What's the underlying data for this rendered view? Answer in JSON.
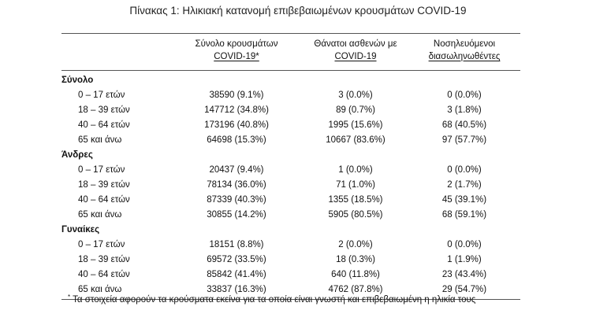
{
  "caption": "Πίνακας 1: Ηλικιακή κατανομή επιβεβαιωμένων κρουσμάτων COVID-19",
  "headers": [
    {
      "line1": "Σύνολο κρουσμάτων",
      "line2": "COVID-19*"
    },
    {
      "line1": "Θάνατοι ασθενών με",
      "line2": "COVID-19"
    },
    {
      "line1": "Νοσηλευόμενοι",
      "line2": "διασωληνωθέντες"
    }
  ],
  "groups": [
    {
      "title": "Σύνολο",
      "rows": [
        {
          "age": "0 – 17 ετών",
          "cases": "38590 (9.1%)",
          "deaths": "3 (0.0%)",
          "intubated": "0 (0.0%)"
        },
        {
          "age": "18 – 39 ετών",
          "cases": "147712 (34.8%)",
          "deaths": "89 (0.7%)",
          "intubated": "3 (1.8%)"
        },
        {
          "age": "40 – 64 ετών",
          "cases": "173196 (40.8%)",
          "deaths": "1995 (15.6%)",
          "intubated": "68 (40.5%)"
        },
        {
          "age": "65 και άνω",
          "cases": "64698 (15.3%)",
          "deaths": "10667 (83.6%)",
          "intubated": "97 (57.7%)"
        }
      ]
    },
    {
      "title": "Άνδρες",
      "rows": [
        {
          "age": "0 – 17 ετών",
          "cases": "20437 (9.4%)",
          "deaths": "1 (0.0%)",
          "intubated": "0 (0.0%)"
        },
        {
          "age": "18 – 39 ετών",
          "cases": "78134 (36.0%)",
          "deaths": "71 (1.0%)",
          "intubated": "2 (1.7%)"
        },
        {
          "age": "40 – 64 ετών",
          "cases": "87339 (40.3%)",
          "deaths": "1355 (18.5%)",
          "intubated": "45 (39.1%)"
        },
        {
          "age": "65 και άνω",
          "cases": "30855 (14.2%)",
          "deaths": "5905 (80.5%)",
          "intubated": "68 (59.1%)"
        }
      ]
    },
    {
      "title": "Γυναίκες",
      "rows": [
        {
          "age": "0 – 17 ετών",
          "cases": "18151 (8.8%)",
          "deaths": "2 (0.0%)",
          "intubated": "0 (0.0%)"
        },
        {
          "age": "18 – 39 ετών",
          "cases": "69572 (33.5%)",
          "deaths": "18 (0.3%)",
          "intubated": "1 (1.9%)"
        },
        {
          "age": "40 – 64 ετών",
          "cases": "85842 (41.4%)",
          "deaths": "640 (11.8%)",
          "intubated": "23 (43.4%)"
        },
        {
          "age": "65 και άνω",
          "cases": "33837 (16.3%)",
          "deaths": "4762 (87.8%)",
          "intubated": "29 (54.7%)"
        }
      ]
    }
  ],
  "footnote": {
    "mark": "*",
    "text": "Τα στοιχεία αφορούν τα κρούσματα εκείνα για τα οποία είναι γνωστή και επιβεβαιωμένη η ηλικία τους"
  }
}
